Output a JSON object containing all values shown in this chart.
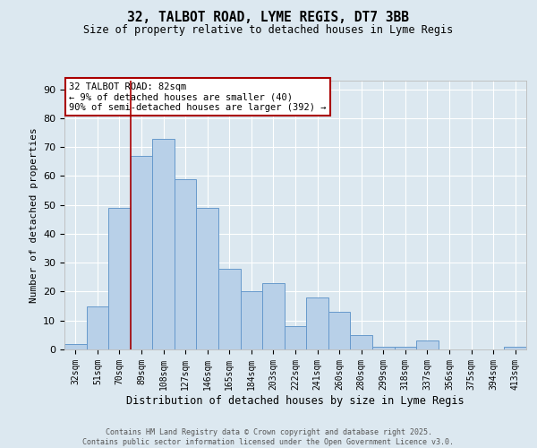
{
  "title1": "32, TALBOT ROAD, LYME REGIS, DT7 3BB",
  "title2": "Size of property relative to detached houses in Lyme Regis",
  "xlabel": "Distribution of detached houses by size in Lyme Regis",
  "ylabel": "Number of detached properties",
  "categories": [
    "32sqm",
    "51sqm",
    "70sqm",
    "89sqm",
    "108sqm",
    "127sqm",
    "146sqm",
    "165sqm",
    "184sqm",
    "203sqm",
    "222sqm",
    "241sqm",
    "260sqm",
    "280sqm",
    "299sqm",
    "318sqm",
    "337sqm",
    "356sqm",
    "375sqm",
    "394sqm",
    "413sqm"
  ],
  "values": [
    2,
    15,
    49,
    67,
    73,
    59,
    49,
    28,
    20,
    23,
    8,
    18,
    13,
    5,
    1,
    1,
    3,
    0,
    0,
    0,
    1
  ],
  "bar_color": "#b8d0e8",
  "bar_edge_color": "#6699cc",
  "background_color": "#dce8f0",
  "grid_color": "#ffffff",
  "red_line_x": 2.5,
  "annotation_text": "32 TALBOT ROAD: 82sqm\n← 9% of detached houses are smaller (40)\n90% of semi-detached houses are larger (392) →",
  "annotation_box_color": "#ffffff",
  "annotation_box_edge": "#aa0000",
  "red_line_color": "#aa0000",
  "footer1": "Contains HM Land Registry data © Crown copyright and database right 2025.",
  "footer2": "Contains public sector information licensed under the Open Government Licence v3.0.",
  "ylim": [
    0,
    93
  ],
  "yticks": [
    0,
    10,
    20,
    30,
    40,
    50,
    60,
    70,
    80,
    90
  ]
}
